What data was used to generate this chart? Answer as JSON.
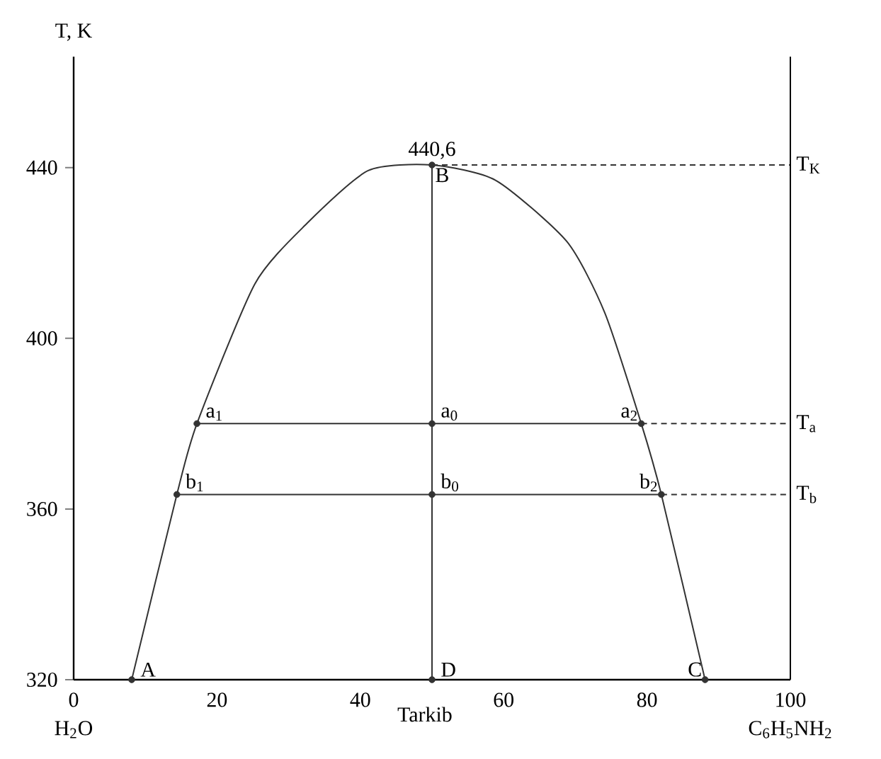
{
  "chart_data": {
    "type": "line",
    "ylabel": "T, K",
    "xlabel": "Tarkib",
    "xlim": [
      0,
      100
    ],
    "ylim": [
      320,
      466
    ],
    "xticks": [
      0,
      20,
      40,
      60,
      80,
      100
    ],
    "yticks": [
      320,
      360,
      400,
      440
    ],
    "series": [
      {
        "color": "#333333",
        "line_style": "solid",
        "x": [
          8.1,
          14.4,
          17.2,
          25.3,
          32.6,
          41.1,
          50,
          58.9,
          68.8,
          74.1,
          79.2,
          82.0,
          88.1
        ],
        "values": [
          320,
          363.4,
          380,
          412.8,
          427,
          439.3,
          440.6,
          437,
          422.7,
          406,
          380,
          363.4,
          320
        ]
      },
      {
        "color": "#333333",
        "line_style": "solid",
        "x": [
          17.2,
          79.2
        ],
        "values": [
          380,
          380
        ]
      },
      {
        "color": "#333333",
        "line_style": "solid",
        "x": [
          14.4,
          82.0
        ],
        "values": [
          363.4,
          363.4
        ]
      },
      {
        "color": "#333333",
        "line_style": "solid",
        "x": [
          50,
          50
        ],
        "values": [
          320,
          440.6
        ]
      },
      {
        "color": "#333333",
        "line_style": "dashed",
        "x": [
          50,
          100
        ],
        "values": [
          440.6,
          440.6
        ]
      },
      {
        "color": "#333333",
        "line_style": "dashed",
        "x": [
          79.2,
          100
        ],
        "values": [
          380,
          380
        ]
      },
      {
        "color": "#333333",
        "line_style": "dashed",
        "x": [
          82.0,
          100
        ],
        "values": [
          363.4,
          363.4
        ]
      },
      {
        "type": "scatter",
        "color": "#333333",
        "marker": "circle",
        "x": [
          8.1,
          14.4,
          17.2,
          50,
          79.2,
          82.0,
          88.1,
          50,
          50,
          50
        ],
        "values": [
          320,
          363.4,
          380,
          440.6,
          380,
          363.4,
          320,
          380,
          363.4,
          320
        ]
      }
    ],
    "annotations": [
      {
        "text": "440,6",
        "x": 50,
        "y": 440.6
      },
      {
        "text": "B",
        "x": 50,
        "y": 440.6
      },
      {
        "text": "a$_{1}$",
        "x": 17.2,
        "y": 380
      },
      {
        "text": "a$_{0}$",
        "x": 50,
        "y": 380
      },
      {
        "text": "a$_{2}$",
        "x": 79.2,
        "y": 380
      },
      {
        "text": "b$_{1}$",
        "x": 14.4,
        "y": 363.4
      },
      {
        "text": "b$_{0}$",
        "x": 50,
        "y": 363.4
      },
      {
        "text": "b$_{2}$",
        "x": 82.0,
        "y": 363.4
      },
      {
        "text": "A",
        "x": 8.1,
        "y": 320
      },
      {
        "text": "D",
        "x": 50,
        "y": 320
      },
      {
        "text": "C",
        "x": 88.1,
        "y": 320
      },
      {
        "text": "T$_{K}$",
        "x": 100,
        "y": 440.6
      },
      {
        "text": "T$_{a}$",
        "x": 100,
        "y": 380
      },
      {
        "text": "T$_{b}$",
        "x": 100,
        "y": 363.4
      },
      "H$_{2}$O",
      "C$_{6}$H$_{5}$NH$_{2}$"
    ]
  }
}
